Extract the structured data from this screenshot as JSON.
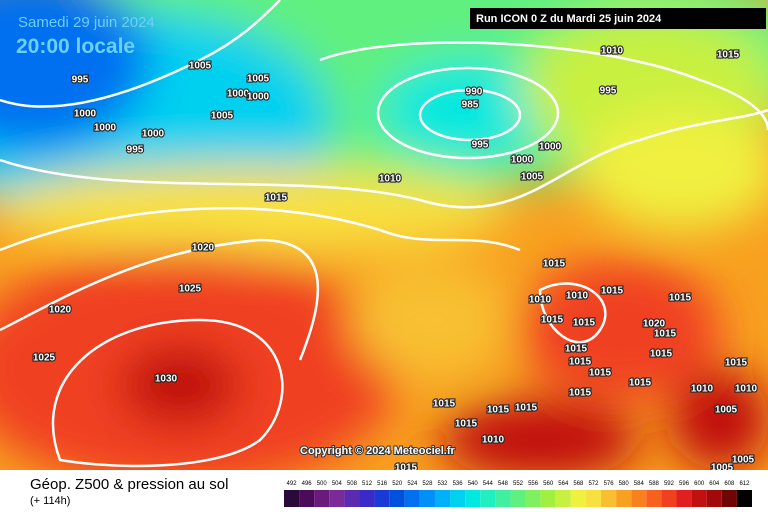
{
  "header": {
    "date": "Samedi 29 juin 2024",
    "time": "20:00 locale",
    "run": "Run ICON 0 Z du Mardi 25 juin 2024"
  },
  "copyright": "Copyright © 2024 Meteociel.fr",
  "isobar_labels": [
    "1005",
    "995",
    "1005",
    "1000",
    "1000",
    "1005",
    "1000",
    "1000",
    "1000",
    "995",
    "990",
    "985",
    "995",
    "1010",
    "1015",
    "995",
    "1000",
    "1000",
    "1005",
    "1010",
    "1015",
    "1020",
    "1025",
    "1020",
    "1025",
    "1030",
    "1015",
    "1010",
    "1010",
    "1015",
    "1015",
    "1015",
    "1015",
    "1020",
    "1015",
    "1015",
    "1015",
    "1015",
    "1015",
    "1015",
    "1015",
    "1015",
    "1010",
    "1015",
    "1015",
    "1015",
    "1015",
    "1010",
    "1015",
    "1010",
    "1005",
    "1005",
    "1005"
  ],
  "footer": {
    "title": "Géop. Z500 & pression au sol",
    "lead": "(+ 114h)"
  },
  "legend": {
    "values": [
      492,
      496,
      500,
      504,
      508,
      512,
      516,
      520,
      524,
      528,
      532,
      536,
      540,
      544,
      548,
      552,
      556,
      560,
      564,
      568,
      572,
      576,
      580,
      584,
      588,
      592,
      596,
      600,
      604,
      608,
      612
    ],
    "colors": [
      "#2a0a3a",
      "#4b0a5a",
      "#6a1a7a",
      "#7b2a9a",
      "#5a2ab0",
      "#3a2ac8",
      "#1a3ad8",
      "#0050e0",
      "#0070f0",
      "#0090f8",
      "#00b0f8",
      "#00d0f0",
      "#00e8e0",
      "#20f0c0",
      "#40f0a0",
      "#60f080",
      "#80f060",
      "#a0f040",
      "#c8f040",
      "#f0f040",
      "#f8e040",
      "#f8c030",
      "#f8a020",
      "#f88020",
      "#f86020",
      "#f04020",
      "#e02020",
      "#c01010",
      "#a00a0a",
      "#700505",
      "#000000"
    ]
  }
}
